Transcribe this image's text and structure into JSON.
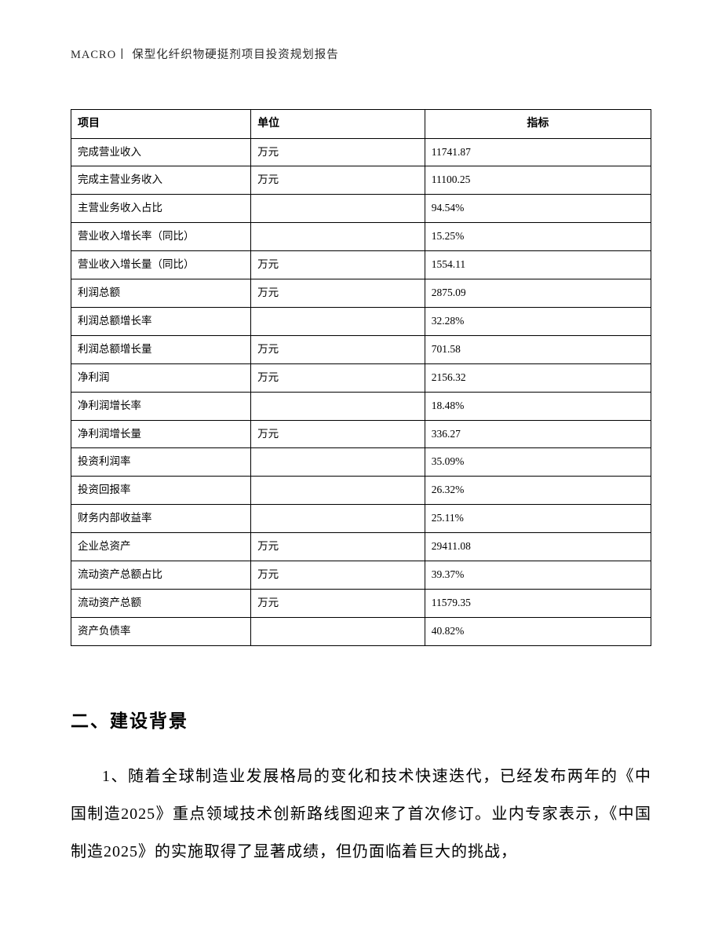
{
  "header": "MACRO丨  保型化纤织物硬挺剂项目投资规划报告",
  "table": {
    "columns": [
      "项目",
      "单位",
      "指标"
    ],
    "rows": [
      [
        "完成营业收入",
        "万元",
        "11741.87"
      ],
      [
        "完成主营业务收入",
        "万元",
        "11100.25"
      ],
      [
        "主营业务收入占比",
        "",
        "94.54%"
      ],
      [
        "营业收入增长率（同比）",
        "",
        "15.25%"
      ],
      [
        "营业收入增长量（同比）",
        "万元",
        "1554.11"
      ],
      [
        "利润总额",
        "万元",
        "2875.09"
      ],
      [
        "利润总额增长率",
        "",
        "32.28%"
      ],
      [
        "利润总额增长量",
        "万元",
        "701.58"
      ],
      [
        "净利润",
        "万元",
        "2156.32"
      ],
      [
        "净利润增长率",
        "",
        "18.48%"
      ],
      [
        "净利润增长量",
        "万元",
        "336.27"
      ],
      [
        "投资利润率",
        "",
        "35.09%"
      ],
      [
        "投资回报率",
        "",
        "26.32%"
      ],
      [
        "财务内部收益率",
        "",
        "25.11%"
      ],
      [
        "企业总资产",
        "万元",
        "29411.08"
      ],
      [
        "流动资产总额占比",
        "万元",
        "39.37%"
      ],
      [
        "流动资产总额",
        "万元",
        "11579.35"
      ],
      [
        "资产负债率",
        "",
        "40.82%"
      ]
    ]
  },
  "heading": "二、建设背景",
  "paragraph": "1、随着全球制造业发展格局的变化和技术快速迭代，已经发布两年的《中国制造2025》重点领域技术创新路线图迎来了首次修订。业内专家表示，《中国制造2025》的实施取得了显著成绩，但仍面临着巨大的挑战，"
}
